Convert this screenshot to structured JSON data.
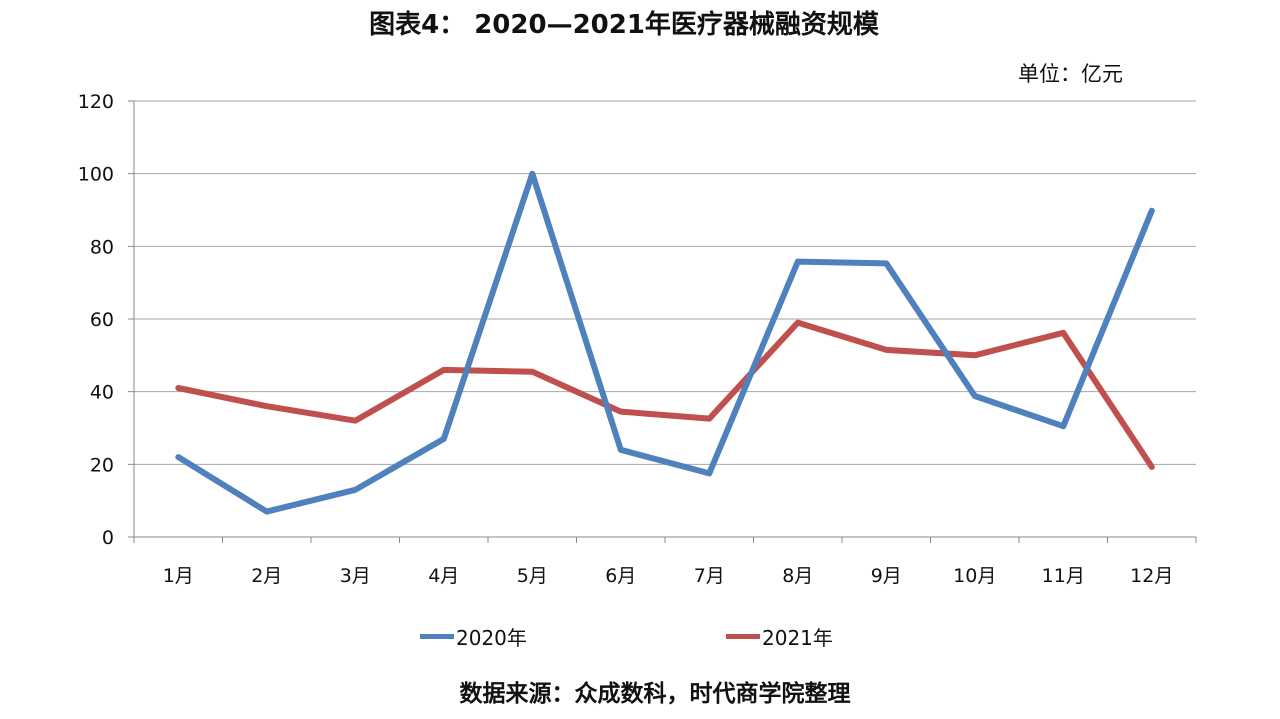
{
  "title": "图表4： 2020—2021年医疗器械融资规模",
  "unit": "单位：亿元",
  "source": "数据来源：众成数科，时代商学院整理",
  "colors": {
    "series_2020": "#4f81bd",
    "series_2021": "#c0504d",
    "grid": "#a6a6a6",
    "axis": "#888888"
  },
  "chart_data": {
    "type": "line",
    "categories": [
      "1月",
      "2月",
      "3月",
      "4月",
      "5月",
      "6月",
      "7月",
      "8月",
      "9月",
      "10月",
      "11月",
      "12月"
    ],
    "series": [
      {
        "name": "2020年",
        "values": [
          22,
          7,
          13,
          27,
          100,
          24,
          17.5,
          75.8,
          75.3,
          38.8,
          30.5,
          89.8
        ]
      },
      {
        "name": "2021年",
        "values": [
          41,
          36,
          32,
          46,
          45.5,
          34.5,
          32.6,
          59,
          51.5,
          50,
          56.2,
          19.3
        ]
      }
    ],
    "ylim": [
      0,
      120
    ],
    "yticks": [
      0,
      20,
      40,
      60,
      80,
      100,
      120
    ],
    "grid": true,
    "legend": "bottom"
  }
}
